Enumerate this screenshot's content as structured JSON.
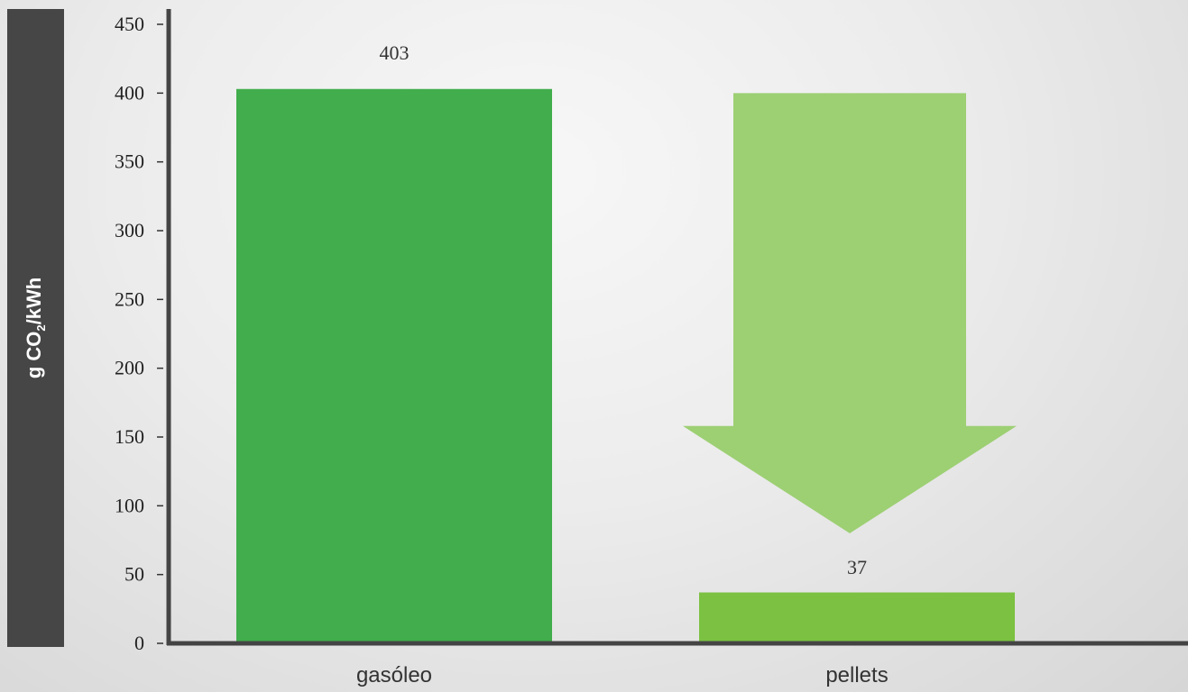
{
  "chart_data": {
    "type": "bar",
    "categories": [
      "gasóleo",
      "pellets"
    ],
    "values": [
      403,
      37
    ],
    "data_labels": [
      "403",
      "37"
    ],
    "ylabel": {
      "main": "g CO",
      "sub": "2",
      "tail": "/kWh"
    },
    "ylim": [
      0,
      450
    ],
    "yticks": [
      0,
      50,
      100,
      150,
      200,
      250,
      300,
      350,
      400,
      450
    ],
    "grid": false,
    "legend": "none",
    "annotation": {
      "type": "arrow-down",
      "from": 400,
      "to": 80,
      "category": "pellets"
    },
    "colors": {
      "gasóleo": "#41ad4c",
      "pellets": "#7cc142",
      "arrow": "#9dcf73",
      "axis": "#444444",
      "panel": "#464646"
    }
  }
}
